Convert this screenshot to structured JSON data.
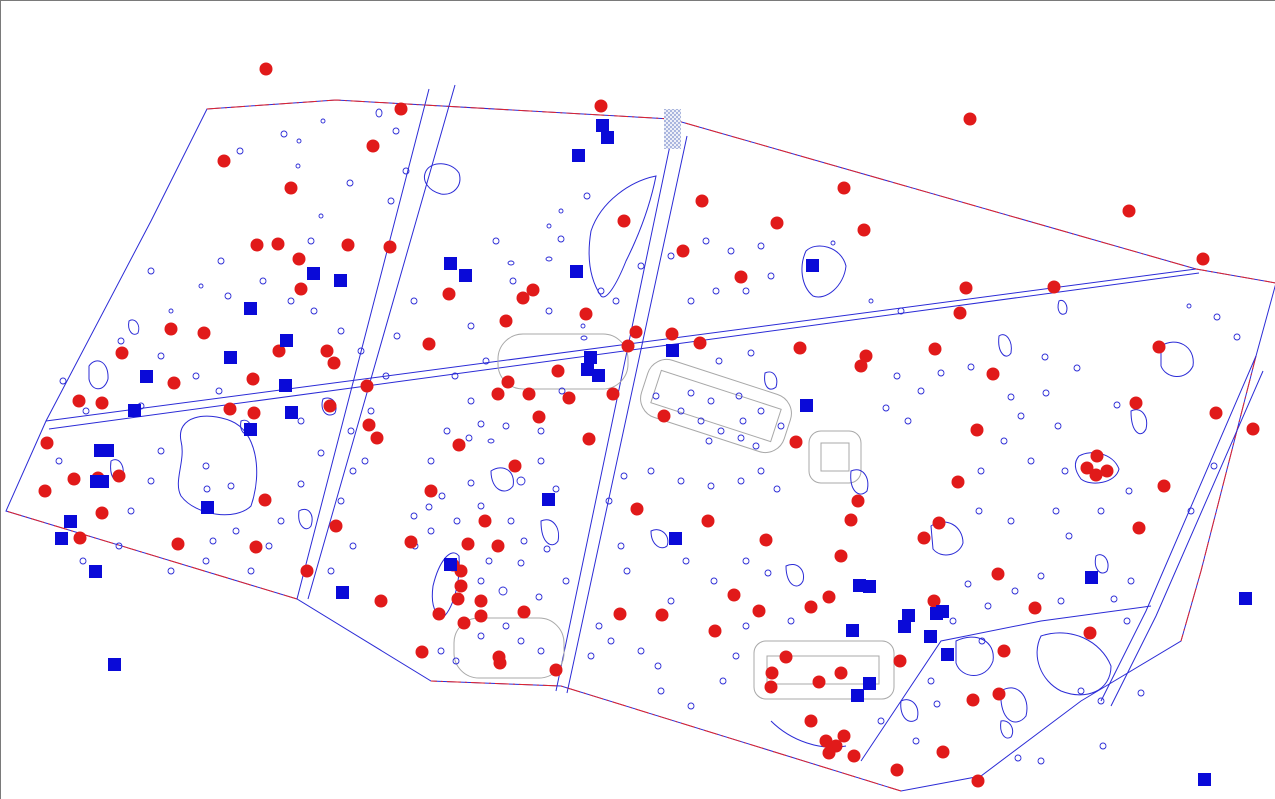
{
  "map": {
    "background": "#ffffff",
    "colors": {
      "feature_outline": "#2b2bd6",
      "boundary": "#e0242a",
      "buffer_outline": "#a8a8a8",
      "red_marker": "#e11a1a",
      "blue_marker": "#0a0ad8",
      "hatch": "#9aa8d8"
    },
    "marker_icons": {
      "red": "red-circle-marker-icon",
      "blue": "blue-square-marker-icon"
    }
  }
}
